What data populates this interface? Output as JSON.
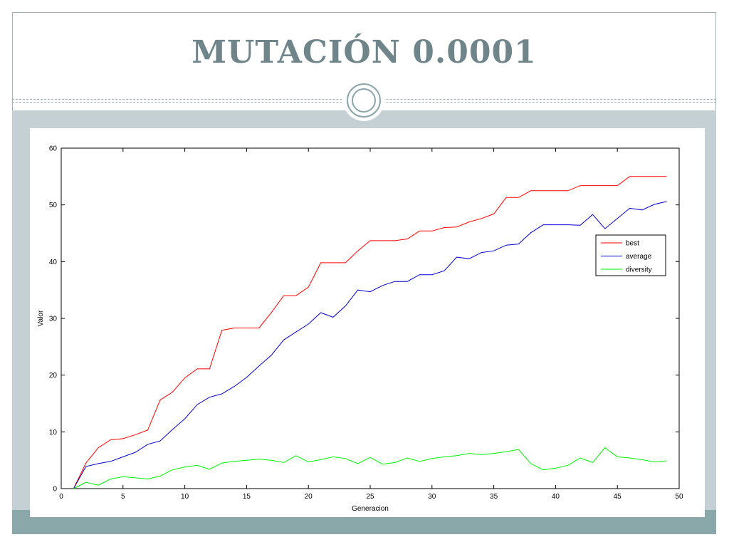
{
  "slide": {
    "title": "MUTACIÓN 0.0001",
    "colors": {
      "title": "#6f8589",
      "band": "#c5d0d4",
      "footer": "#8aa8aa"
    }
  },
  "chart_data": {
    "type": "line",
    "xlabel": "Generacion",
    "ylabel": "Valor",
    "xlim": [
      0,
      50
    ],
    "ylim": [
      0,
      60
    ],
    "xticks": [
      0,
      5,
      10,
      15,
      20,
      25,
      30,
      35,
      40,
      45,
      50
    ],
    "yticks": [
      0,
      10,
      20,
      30,
      40,
      50,
      60
    ],
    "legend_position": "right",
    "x": [
      1,
      2,
      3,
      4,
      5,
      6,
      7,
      8,
      9,
      10,
      11,
      12,
      13,
      14,
      15,
      16,
      17,
      18,
      19,
      20,
      21,
      22,
      23,
      24,
      25,
      26,
      27,
      28,
      29,
      30,
      31,
      32,
      33,
      34,
      35,
      36,
      37,
      38,
      39,
      40,
      41,
      42,
      43,
      44,
      45,
      46,
      47,
      48,
      49
    ],
    "series": [
      {
        "name": "best",
        "color": "#ff0000",
        "values": [
          0,
          4.5,
          7.2,
          8.6,
          8.8,
          9.5,
          10.3,
          15.6,
          17,
          19.5,
          21.1,
          21.1,
          27.9,
          28.3,
          28.3,
          28.3,
          31,
          34,
          34,
          35.5,
          39.8,
          39.8,
          39.8,
          41.9,
          43.7,
          43.7,
          43.7,
          44,
          45.4,
          45.4,
          46,
          46.1,
          47,
          47.6,
          48.4,
          51.3,
          51.3,
          52.5,
          52.5,
          52.5,
          52.5,
          53.4,
          53.4,
          53.4,
          53.4,
          55,
          55,
          55,
          55
        ]
      },
      {
        "name": "average",
        "color": "#0000cc",
        "values": [
          0,
          3.9,
          4.4,
          4.8,
          5.6,
          6.4,
          7.8,
          8.4,
          10.4,
          12.3,
          14.8,
          16.1,
          16.7,
          18,
          19.6,
          21.6,
          23.5,
          26.2,
          27.6,
          29,
          31,
          30.2,
          32.2,
          35,
          34.7,
          35.8,
          36.5,
          36.5,
          37.7,
          37.7,
          38.4,
          40.8,
          40.5,
          41.6,
          41.9,
          42.9,
          43.1,
          45.1,
          46.5,
          46.5,
          46.5,
          46.4,
          48.3,
          45.8,
          47.6,
          49.4,
          49.1,
          50.1,
          50.6
        ]
      },
      {
        "name": "diversity",
        "color": "#00ee00",
        "values": [
          0,
          1.1,
          0.6,
          1.7,
          2.1,
          1.9,
          1.7,
          2.2,
          3.3,
          3.8,
          4.1,
          3.4,
          4.5,
          4.8,
          5,
          5.2,
          5,
          4.6,
          5.8,
          4.7,
          5.1,
          5.6,
          5.3,
          4.4,
          5.5,
          4.3,
          4.6,
          5.4,
          4.8,
          5.3,
          5.6,
          5.8,
          6.2,
          6,
          6.2,
          6.5,
          6.9,
          4.4,
          3.3,
          3.6,
          4.1,
          5.4,
          4.6,
          7.2,
          5.6,
          5.4,
          5.1,
          4.7,
          4.9
        ]
      }
    ]
  }
}
